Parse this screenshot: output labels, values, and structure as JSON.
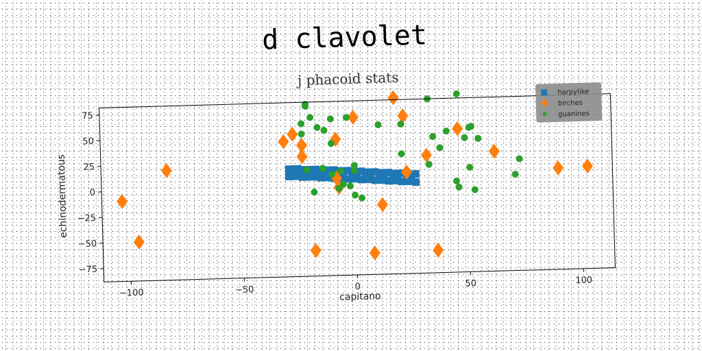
{
  "chart_data": {
    "type": "scatter",
    "title": "d clavolet",
    "subtitle": "j phacoid stats",
    "xlabel": "capitano",
    "ylabel": "echinodermatous",
    "xlim": [
      -112,
      114
    ],
    "ylim": [
      -88,
      82
    ],
    "xticks": [
      -100,
      -50,
      0,
      50,
      100
    ],
    "yticks": [
      -75,
      -50,
      -25,
      0,
      25,
      50,
      75
    ],
    "grid": false,
    "legend": "top-right",
    "series": [
      {
        "name": "harpylike",
        "marker": "square",
        "color": "#1f77b4",
        "points": [
          [
            -29,
            17
          ],
          [
            -27,
            17
          ],
          [
            -25,
            17
          ],
          [
            -23,
            16
          ],
          [
            -21,
            16
          ],
          [
            -19,
            16
          ],
          [
            -17,
            16
          ],
          [
            -15,
            15
          ],
          [
            -13,
            15
          ],
          [
            -11,
            15
          ],
          [
            -9,
            15
          ],
          [
            -7,
            14
          ],
          [
            -5,
            14
          ],
          [
            -3,
            14
          ],
          [
            -1,
            13
          ],
          [
            1,
            13
          ],
          [
            3,
            13
          ],
          [
            5,
            12
          ],
          [
            7,
            12
          ],
          [
            9,
            12
          ],
          [
            11,
            11
          ],
          [
            13,
            11
          ],
          [
            15,
            11
          ],
          [
            17,
            10
          ],
          [
            19,
            10
          ],
          [
            21,
            10
          ],
          [
            23,
            9
          ],
          [
            25,
            9
          ],
          [
            27,
            9
          ],
          [
            -29,
            10
          ],
          [
            -27,
            10
          ],
          [
            -25,
            10
          ],
          [
            -23,
            9
          ],
          [
            -21,
            9
          ],
          [
            -19,
            9
          ],
          [
            -17,
            9
          ],
          [
            -15,
            8
          ],
          [
            -13,
            8
          ],
          [
            -11,
            8
          ],
          [
            -9,
            7
          ],
          [
            -7,
            7
          ],
          [
            -5,
            7
          ],
          [
            -3,
            6
          ],
          [
            -1,
            6
          ],
          [
            1,
            6
          ],
          [
            3,
            5
          ],
          [
            5,
            5
          ],
          [
            7,
            5
          ],
          [
            9,
            4
          ],
          [
            11,
            4
          ],
          [
            13,
            4
          ],
          [
            15,
            3
          ],
          [
            17,
            3
          ],
          [
            19,
            3
          ],
          [
            21,
            2
          ],
          [
            23,
            2
          ],
          [
            25,
            2
          ],
          [
            27,
            1
          ]
        ]
      },
      {
        "name": "birches",
        "marker": "diamond",
        "color": "#ff7f0e",
        "points": [
          [
            -103,
            -10
          ],
          [
            -96,
            -50
          ],
          [
            -83,
            19
          ],
          [
            -31,
            44
          ],
          [
            -27,
            51
          ],
          [
            -23,
            40
          ],
          [
            -23,
            29
          ],
          [
            -18,
            -63
          ],
          [
            -8,
            45
          ],
          [
            -8,
            7
          ],
          [
            -7,
            -2
          ],
          [
            0,
            66
          ],
          [
            8,
            -67
          ],
          [
            12,
            -20
          ],
          [
            18,
            84
          ],
          [
            22,
            66
          ],
          [
            23,
            11
          ],
          [
            32,
            27
          ],
          [
            36,
            -66
          ],
          [
            46,
            52
          ],
          [
            62,
            29
          ],
          [
            90,
            11
          ],
          [
            103,
            12
          ]
        ]
      },
      {
        "name": "guanines",
        "marker": "circle",
        "color": "#2ca02c",
        "points": [
          [
            -21,
            80
          ],
          [
            -21,
            78
          ],
          [
            -19,
            67
          ],
          [
            -23,
            61
          ],
          [
            -16,
            57
          ],
          [
            -10,
            65
          ],
          [
            -13,
            54
          ],
          [
            -3,
            66
          ],
          [
            -23,
            51
          ],
          [
            -10,
            41
          ],
          [
            -14,
            17
          ],
          [
            -21,
            16
          ],
          [
            -6,
            14
          ],
          [
            0,
            19
          ],
          [
            -10,
            11
          ],
          [
            0,
            14
          ],
          [
            -5,
            1
          ],
          [
            -2,
            -1
          ],
          [
            0,
            -10
          ],
          [
            3,
            -13
          ],
          [
            -18,
            -6
          ],
          [
            -7,
            -3
          ],
          [
            11,
            58
          ],
          [
            21,
            58
          ],
          [
            33,
            82
          ],
          [
            46,
            86
          ],
          [
            21,
            29
          ],
          [
            35,
            45
          ],
          [
            41,
            50
          ],
          [
            38,
            34
          ],
          [
            49,
            43
          ],
          [
            51,
            53
          ],
          [
            52,
            54
          ],
          [
            55,
            42
          ],
          [
            51,
            14
          ],
          [
            33,
            18
          ],
          [
            45,
            1
          ],
          [
            46,
            -5
          ],
          [
            53,
            -8
          ],
          [
            73,
            21
          ],
          [
            71,
            6
          ]
        ]
      }
    ]
  }
}
